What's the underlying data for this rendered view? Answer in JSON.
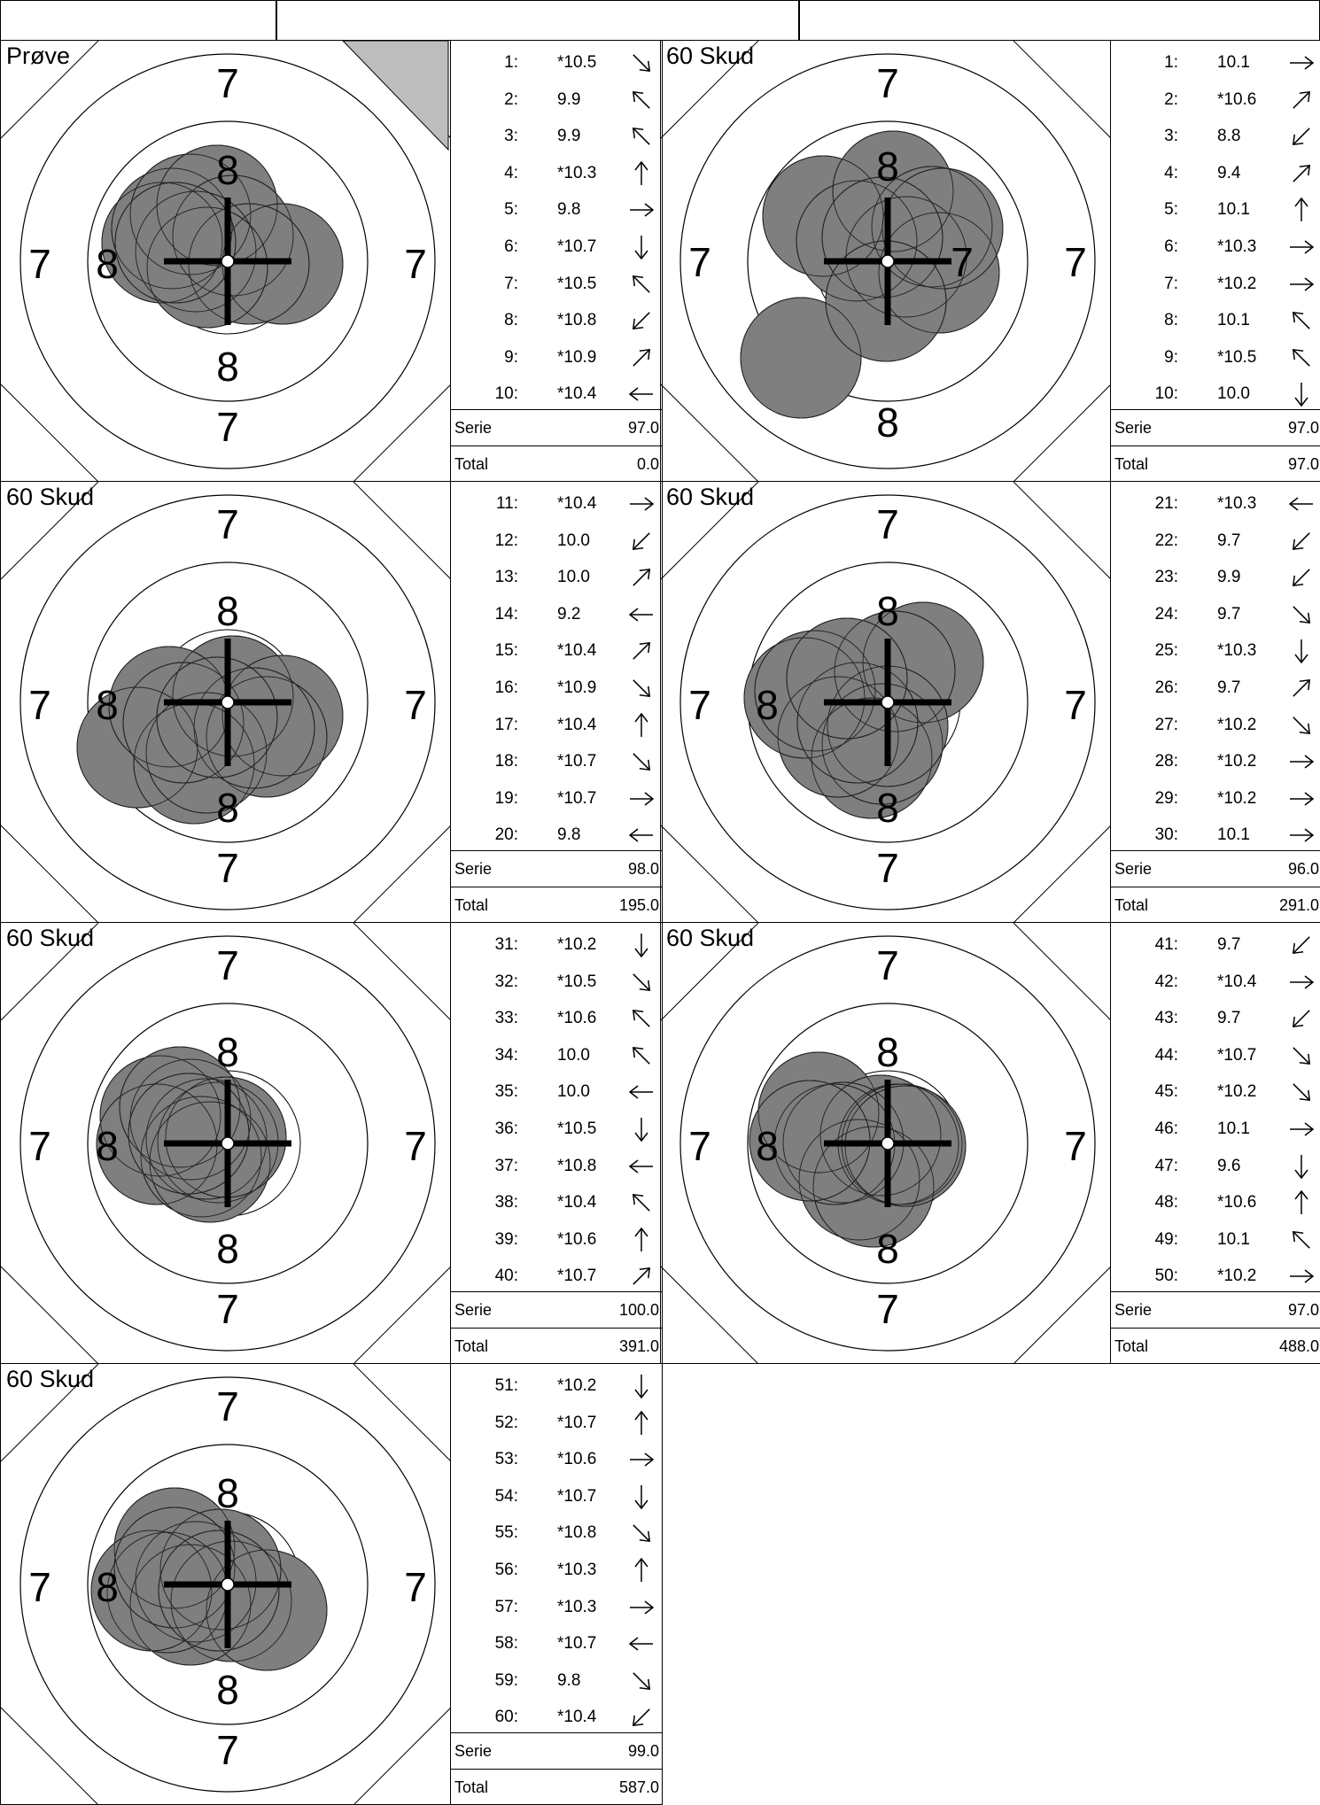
{
  "header": {
    "cells": [
      "",
      "",
      ""
    ]
  },
  "panels": [
    {
      "title": "Prøve",
      "style": "proof",
      "serie_label": "Serie",
      "serie": "97.0",
      "total_label": "Total",
      "total": "0.0",
      "ring_labels": [
        "7",
        "8",
        "8",
        "7",
        "7",
        "8",
        "7"
      ],
      "shots": [
        {
          "n": "1:",
          "v": "*10.5",
          "dir": "down-right"
        },
        {
          "n": "2:",
          "v": "9.9",
          "dir": "up-left"
        },
        {
          "n": "3:",
          "v": "9.9",
          "dir": "up-left"
        },
        {
          "n": "4:",
          "v": "*10.3",
          "dir": "up"
        },
        {
          "n": "5:",
          "v": "9.8",
          "dir": "right"
        },
        {
          "n": "6:",
          "v": "*10.7",
          "dir": "down"
        },
        {
          "n": "7:",
          "v": "*10.5",
          "dir": "up-left"
        },
        {
          "n": "8:",
          "v": "*10.8",
          "dir": "down-left"
        },
        {
          "n": "9:",
          "v": "*10.9",
          "dir": "up-right"
        },
        {
          "n": "10:",
          "v": "*10.4",
          "dir": "left"
        }
      ]
    },
    {
      "title": "60 Skud",
      "style": "match",
      "serie_label": "Serie",
      "serie": "97.0",
      "total_label": "Total",
      "total": "97.0",
      "ring_labels": [
        "7",
        "8",
        "7",
        "7",
        "8",
        "7"
      ],
      "shots": [
        {
          "n": "1:",
          "v": "10.1",
          "dir": "right"
        },
        {
          "n": "2:",
          "v": "*10.6",
          "dir": "up-right"
        },
        {
          "n": "3:",
          "v": "8.8",
          "dir": "down-left"
        },
        {
          "n": "4:",
          "v": "9.4",
          "dir": "up-right"
        },
        {
          "n": "5:",
          "v": "10.1",
          "dir": "up"
        },
        {
          "n": "6:",
          "v": "*10.3",
          "dir": "right"
        },
        {
          "n": "7:",
          "v": "*10.2",
          "dir": "right"
        },
        {
          "n": "8:",
          "v": "10.1",
          "dir": "up-left"
        },
        {
          "n": "9:",
          "v": "*10.5",
          "dir": "up-left"
        },
        {
          "n": "10:",
          "v": "10.0",
          "dir": "down"
        }
      ]
    },
    {
      "title": "60 Skud",
      "style": "match",
      "serie_label": "Serie",
      "serie": "98.0",
      "total_label": "Total",
      "total": "195.0",
      "ring_labels": [
        "7",
        "8",
        "8",
        "7",
        "7",
        "8",
        "7"
      ],
      "shots": [
        {
          "n": "11:",
          "v": "*10.4",
          "dir": "right"
        },
        {
          "n": "12:",
          "v": "10.0",
          "dir": "down-left"
        },
        {
          "n": "13:",
          "v": "10.0",
          "dir": "up-right"
        },
        {
          "n": "14:",
          "v": "9.2",
          "dir": "left"
        },
        {
          "n": "15:",
          "v": "*10.4",
          "dir": "up-right"
        },
        {
          "n": "16:",
          "v": "*10.9",
          "dir": "down-right"
        },
        {
          "n": "17:",
          "v": "*10.4",
          "dir": "up"
        },
        {
          "n": "18:",
          "v": "*10.7",
          "dir": "down-right"
        },
        {
          "n": "19:",
          "v": "*10.7",
          "dir": "right"
        },
        {
          "n": "20:",
          "v": "9.8",
          "dir": "left"
        }
      ]
    },
    {
      "title": "60 Skud",
      "style": "match",
      "serie_label": "Serie",
      "serie": "96.0",
      "total_label": "Total",
      "total": "291.0",
      "ring_labels": [
        "7",
        "8",
        "8",
        "7",
        "7",
        "8",
        "7"
      ],
      "shots": [
        {
          "n": "21:",
          "v": "*10.3",
          "dir": "left"
        },
        {
          "n": "22:",
          "v": "9.7",
          "dir": "down-left"
        },
        {
          "n": "23:",
          "v": "9.9",
          "dir": "down-left"
        },
        {
          "n": "24:",
          "v": "9.7",
          "dir": "down-right"
        },
        {
          "n": "25:",
          "v": "*10.3",
          "dir": "down"
        },
        {
          "n": "26:",
          "v": "9.7",
          "dir": "up-right"
        },
        {
          "n": "27:",
          "v": "*10.2",
          "dir": "down-right"
        },
        {
          "n": "28:",
          "v": "*10.2",
          "dir": "right"
        },
        {
          "n": "29:",
          "v": "*10.2",
          "dir": "right"
        },
        {
          "n": "30:",
          "v": "10.1",
          "dir": "right"
        }
      ]
    },
    {
      "title": "60 Skud",
      "style": "match",
      "serie_label": "Serie",
      "serie": "100.0",
      "total_label": "Total",
      "total": "391.0",
      "ring_labels": [
        "7",
        "8",
        "8",
        "7",
        "7",
        "8",
        "7"
      ],
      "shots": [
        {
          "n": "31:",
          "v": "*10.2",
          "dir": "down"
        },
        {
          "n": "32:",
          "v": "*10.5",
          "dir": "down-right"
        },
        {
          "n": "33:",
          "v": "*10.6",
          "dir": "up-left"
        },
        {
          "n": "34:",
          "v": "10.0",
          "dir": "up-left"
        },
        {
          "n": "35:",
          "v": "10.0",
          "dir": "left"
        },
        {
          "n": "36:",
          "v": "*10.5",
          "dir": "down"
        },
        {
          "n": "37:",
          "v": "*10.8",
          "dir": "left"
        },
        {
          "n": "38:",
          "v": "*10.4",
          "dir": "up-left"
        },
        {
          "n": "39:",
          "v": "*10.6",
          "dir": "up"
        },
        {
          "n": "40:",
          "v": "*10.7",
          "dir": "up-right"
        }
      ]
    },
    {
      "title": "60 Skud",
      "style": "match",
      "serie_label": "Serie",
      "serie": "97.0",
      "total_label": "Total",
      "total": "488.0",
      "ring_labels": [
        "7",
        "8",
        "8",
        "7",
        "7",
        "8",
        "7"
      ],
      "shots": [
        {
          "n": "41:",
          "v": "9.7",
          "dir": "down-left"
        },
        {
          "n": "42:",
          "v": "*10.4",
          "dir": "right"
        },
        {
          "n": "43:",
          "v": "9.7",
          "dir": "down-left"
        },
        {
          "n": "44:",
          "v": "*10.7",
          "dir": "down-right"
        },
        {
          "n": "45:",
          "v": "*10.2",
          "dir": "down-right"
        },
        {
          "n": "46:",
          "v": "10.1",
          "dir": "right"
        },
        {
          "n": "47:",
          "v": "9.6",
          "dir": "down"
        },
        {
          "n": "48:",
          "v": "*10.6",
          "dir": "up"
        },
        {
          "n": "49:",
          "v": "10.1",
          "dir": "up-left"
        },
        {
          "n": "50:",
          "v": "*10.2",
          "dir": "right"
        }
      ]
    },
    {
      "title": "60 Skud",
      "style": "match",
      "serie_label": "Serie",
      "serie": "99.0",
      "total_label": "Total",
      "total": "587.0",
      "ring_labels": [
        "7",
        "8",
        "8",
        "7",
        "7",
        "8",
        "7"
      ],
      "shots": [
        {
          "n": "51:",
          "v": "*10.2",
          "dir": "down"
        },
        {
          "n": "52:",
          "v": "*10.7",
          "dir": "up"
        },
        {
          "n": "53:",
          "v": "*10.6",
          "dir": "right"
        },
        {
          "n": "54:",
          "v": "*10.7",
          "dir": "down"
        },
        {
          "n": "55:",
          "v": "*10.8",
          "dir": "down-right"
        },
        {
          "n": "56:",
          "v": "*10.3",
          "dir": "up"
        },
        {
          "n": "57:",
          "v": "*10.3",
          "dir": "right"
        },
        {
          "n": "58:",
          "v": "*10.7",
          "dir": "left"
        },
        {
          "n": "59:",
          "v": "9.8",
          "dir": "down-right"
        },
        {
          "n": "60:",
          "v": "*10.4",
          "dir": "down-left"
        }
      ]
    }
  ]
}
